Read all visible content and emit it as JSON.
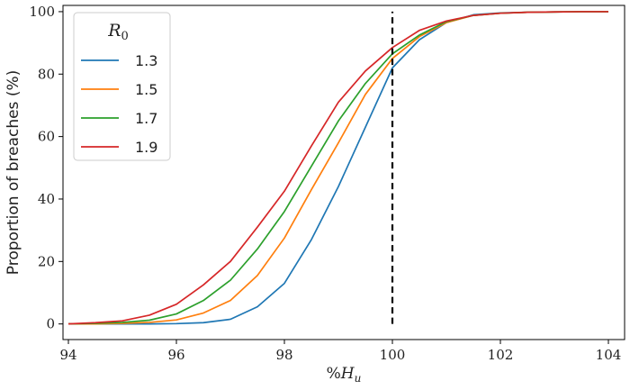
{
  "chart_data": {
    "type": "line",
    "xlabel": "%H_u",
    "xlabel_main": "%H",
    "xlabel_sub": "u",
    "ylabel": "Proportion of breaches (%)",
    "xlim": [
      93.9,
      104.3
    ],
    "ylim": [
      -5,
      102
    ],
    "xticks": [
      94,
      96,
      98,
      100,
      102,
      104
    ],
    "yticks": [
      0,
      20,
      40,
      60,
      80,
      100
    ],
    "x": [
      94,
      94.5,
      95,
      95.5,
      96,
      96.5,
      97,
      97.5,
      98,
      98.5,
      99,
      99.5,
      100,
      100.5,
      101,
      101.5,
      102,
      102.5,
      103,
      103.5,
      104
    ],
    "vline": {
      "x": 100,
      "y_from": 0,
      "y_to": 100,
      "color": "#000000",
      "style": "dashed"
    },
    "legend": {
      "title": "R0",
      "title_main": "R",
      "title_sub": "0",
      "placement": "top-left"
    },
    "series": [
      {
        "name": "1.3",
        "color": "#1f77b4",
        "values": [
          0,
          0,
          0,
          0,
          0.1,
          0.4,
          1.5,
          5.5,
          13,
          27,
          44,
          63,
          82,
          91,
          96.5,
          99,
          99.6,
          99.8,
          99.9,
          100,
          100
        ]
      },
      {
        "name": "1.5",
        "color": "#ff7f0e",
        "values": [
          0,
          0,
          0.2,
          0.5,
          1.3,
          3.5,
          7.5,
          15.5,
          27.5,
          43,
          58,
          73.5,
          85,
          92,
          96.5,
          98.8,
          99.5,
          99.8,
          99.9,
          100,
          100
        ]
      },
      {
        "name": "1.7",
        "color": "#2ca02c",
        "values": [
          0,
          0.2,
          0.5,
          1.2,
          3.2,
          7.5,
          14,
          24,
          36,
          50.5,
          65,
          77,
          86.5,
          92.5,
          96.8,
          98.8,
          99.5,
          99.8,
          99.9,
          100,
          100
        ]
      },
      {
        "name": "1.9",
        "color": "#d62728",
        "values": [
          0,
          0.4,
          1,
          2.8,
          6.3,
          12.5,
          20,
          31,
          42.5,
          57,
          71,
          81,
          88.5,
          94,
          97,
          98.8,
          99.5,
          99.8,
          99.9,
          100,
          100
        ]
      }
    ]
  }
}
